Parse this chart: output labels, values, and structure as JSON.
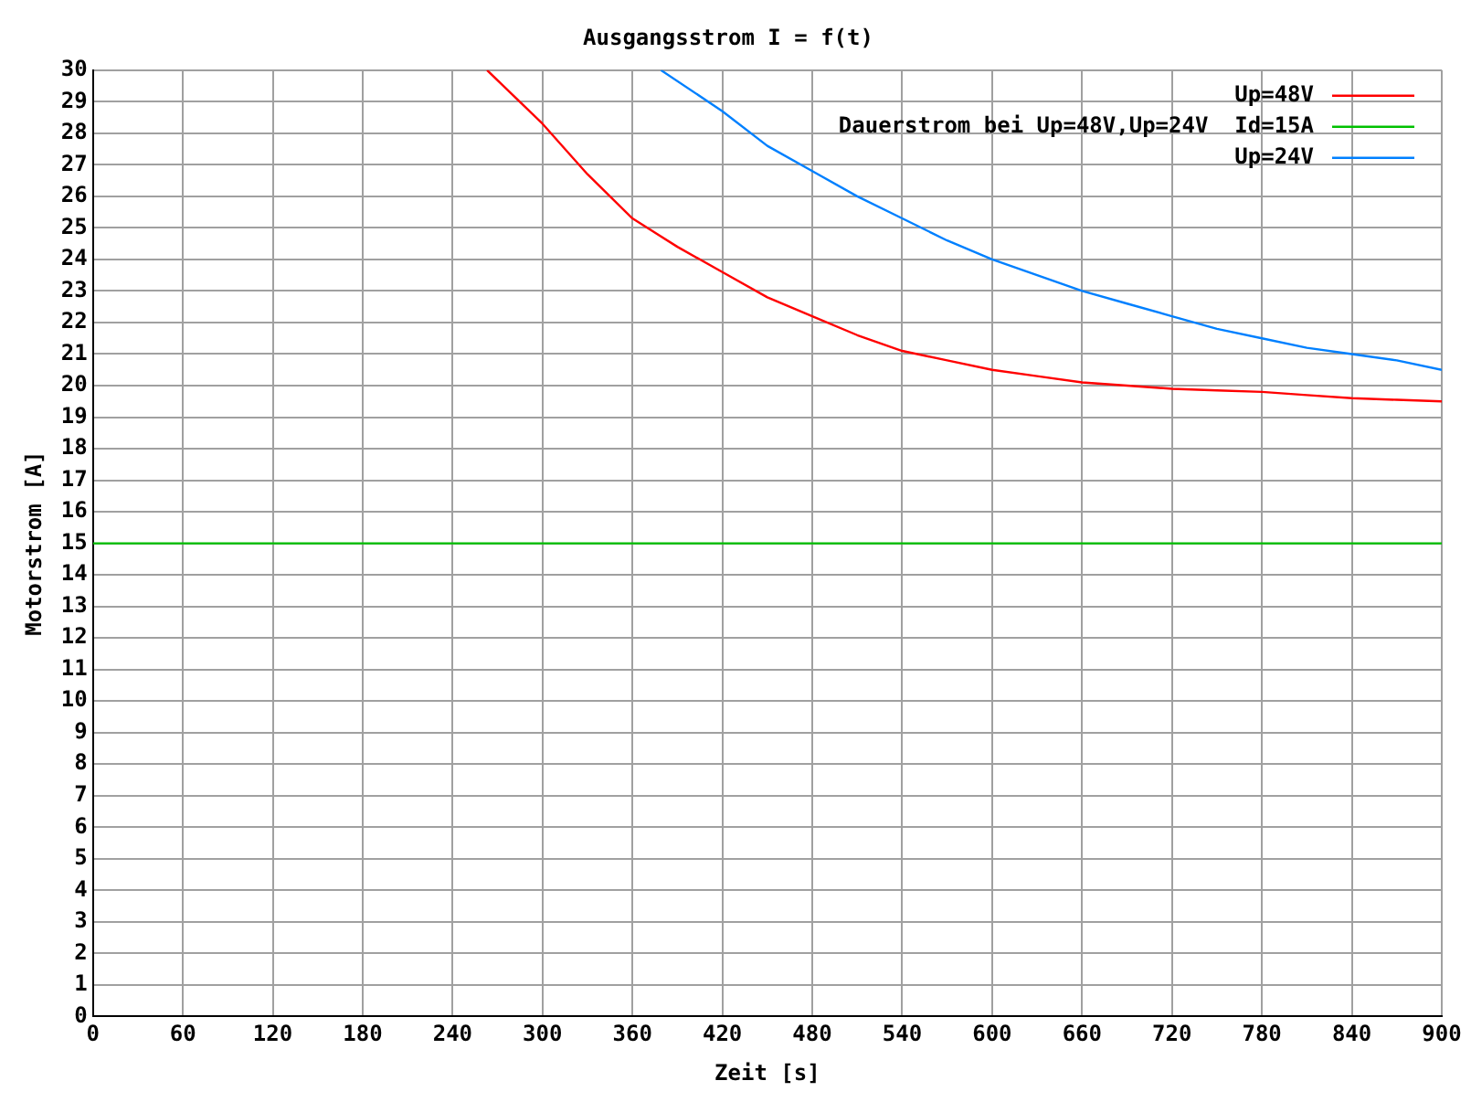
{
  "chart_data": {
    "type": "line",
    "title": "Ausgangsstrom I = f(t)",
    "xlabel": "Zeit [s]",
    "ylabel": "Motorstrom [A]",
    "xlim": [
      0,
      900
    ],
    "xticks": [
      0,
      60,
      120,
      180,
      240,
      300,
      360,
      420,
      480,
      540,
      600,
      660,
      720,
      780,
      840,
      900
    ],
    "ylim": [
      0,
      30
    ],
    "yticks": [
      0,
      1,
      2,
      3,
      4,
      5,
      6,
      7,
      8,
      9,
      10,
      11,
      12,
      13,
      14,
      15,
      16,
      17,
      18,
      19,
      20,
      21,
      22,
      23,
      24,
      25,
      26,
      27,
      28,
      29,
      30
    ],
    "grid": true,
    "legend": "top right",
    "marker": "none",
    "line_style": "solid",
    "series": [
      {
        "name": "Up=48V",
        "color": "#ff0000",
        "x": [
          263,
          300,
          330,
          360,
          390,
          420,
          450,
          480,
          510,
          540,
          570,
          600,
          630,
          660,
          690,
          720,
          750,
          780,
          810,
          840,
          870,
          900
        ],
        "values": [
          30,
          28.3,
          26.7,
          25.3,
          24.4,
          23.6,
          22.8,
          22.2,
          21.6,
          21.1,
          20.8,
          20.5,
          20.3,
          20.1,
          20.0,
          19.9,
          19.85,
          19.8,
          19.7,
          19.6,
          19.55,
          19.5
        ]
      },
      {
        "name": "Dauerstrom bei Up=48V,Up=24V  Id=15A",
        "color": "#00c000",
        "x": [
          0,
          900
        ],
        "values": [
          15,
          15
        ]
      },
      {
        "name": "Up=24V",
        "color": "#0080ff",
        "x": [
          379,
          420,
          450,
          480,
          510,
          540,
          570,
          600,
          630,
          660,
          690,
          720,
          750,
          780,
          810,
          840,
          870,
          900
        ],
        "values": [
          30,
          28.7,
          27.6,
          26.8,
          26.0,
          25.3,
          24.6,
          24.0,
          23.5,
          23.0,
          22.6,
          22.2,
          21.8,
          21.5,
          21.2,
          21.0,
          20.8,
          20.5
        ]
      }
    ]
  }
}
